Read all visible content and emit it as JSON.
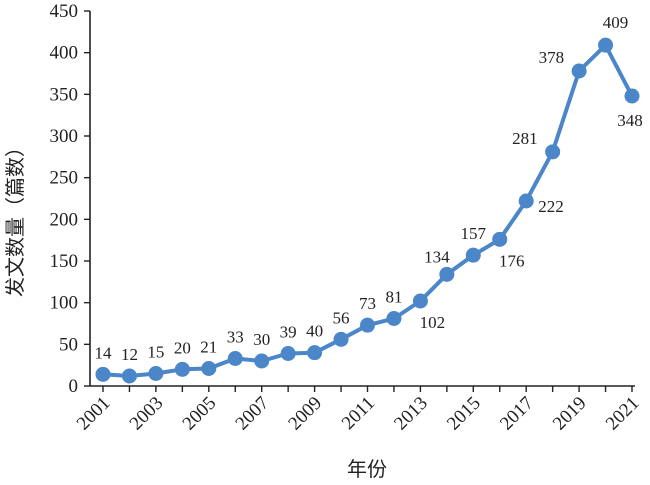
{
  "chart_data": {
    "type": "line",
    "title": "",
    "xlabel": "年份",
    "ylabel": "发文数量（篇数）",
    "x": [
      2001,
      2002,
      2003,
      2004,
      2005,
      2006,
      2007,
      2008,
      2009,
      2010,
      2011,
      2012,
      2013,
      2014,
      2015,
      2016,
      2017,
      2018,
      2019,
      2020,
      2021
    ],
    "series": [
      {
        "values": [
          14,
          12,
          15,
          20,
          21,
          33,
          30,
          39,
          40,
          56,
          73,
          81,
          102,
          134,
          157,
          176,
          222,
          281,
          378,
          409,
          348
        ]
      }
    ],
    "x_tick_labels": [
      "2001",
      "2003",
      "2005",
      "2007",
      "2009",
      "2011",
      "2013",
      "2015",
      "2017",
      "2019",
      "2021"
    ],
    "y_ticks": [
      0,
      50,
      100,
      150,
      200,
      250,
      300,
      350,
      400,
      450
    ],
    "ylim": [
      0,
      450
    ],
    "grid": false,
    "legend": "none",
    "line_color": "#4a86c8",
    "axis_color": "#222222"
  }
}
